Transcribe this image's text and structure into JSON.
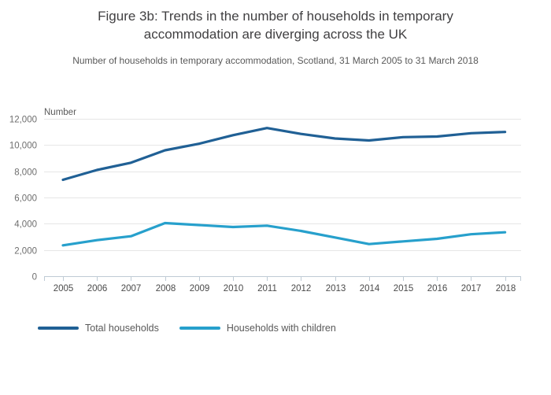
{
  "header": {
    "title": "Figure 3b: Trends in the number of households in temporary accommodation are diverging across the UK",
    "subtitle": "Number of households in temporary accommodation, Scotland, 31 March 2005 to 31 March 2018"
  },
  "chart_data": {
    "type": "line",
    "x": [
      2005,
      2006,
      2007,
      2008,
      2009,
      2010,
      2011,
      2012,
      2013,
      2014,
      2015,
      2016,
      2017,
      2018
    ],
    "series": [
      {
        "name": "Total households",
        "color": "#206095",
        "values": [
          7350,
          8100,
          8650,
          9600,
          10100,
          10750,
          11300,
          10850,
          10500,
          10350,
          10600,
          10650,
          10900,
          11000
        ]
      },
      {
        "name": "Households with children",
        "color": "#27a0cc",
        "values": [
          2350,
          2750,
          3050,
          4050,
          3900,
          3750,
          3850,
          3450,
          2950,
          2450,
          2650,
          2850,
          3200,
          3350
        ]
      }
    ],
    "y_axis_label": "Number",
    "ylim": [
      0,
      12000
    ],
    "ytick_step": 2000,
    "ytick_labels": [
      "0",
      "2,000",
      "4,000",
      "6,000",
      "8,000",
      "10,000",
      "12,000"
    ],
    "grid": "horizontal",
    "legend_position": "bottom-left"
  },
  "style_colors": {
    "gridline": "#e6e6e6",
    "axis_line": "#bfcbd5",
    "ytick_label": "#6e6e6e",
    "xtick_label": "#4a4a4a",
    "axis_title": "#595959"
  }
}
